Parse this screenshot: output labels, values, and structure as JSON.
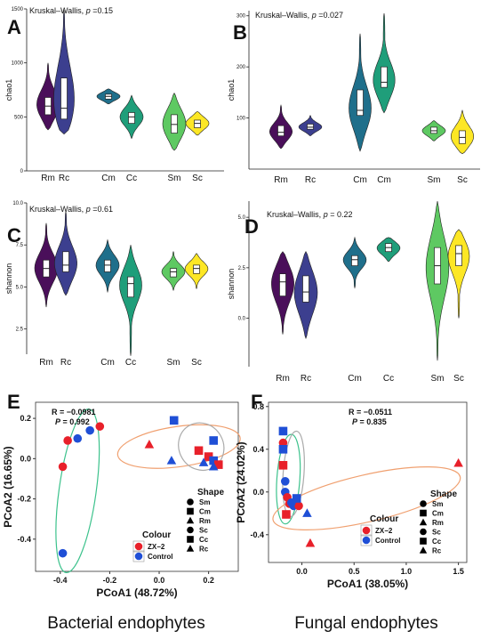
{
  "chart_data": [
    {
      "panel": "A",
      "type": "violin",
      "annotation_prefix": "Kruskal–Wallis, ",
      "p_label": "p",
      "p_value": "=0.15",
      "ylabel": "chao1",
      "ylim": [
        0,
        1500
      ],
      "yticks": [
        0,
        500,
        1000,
        1500
      ],
      "groups": [
        {
          "label": "Rm",
          "color": "#4a0f5a",
          "range": [
            380,
            1000
          ],
          "q1": 520,
          "median": 600,
          "q3": 680
        },
        {
          "label": "Rc",
          "color": "#3c3f8f",
          "range": [
            340,
            1490
          ],
          "q1": 480,
          "median": 580,
          "q3": 860
        },
        {
          "label": "Cm",
          "color": "#1f6f8b",
          "range": [
            620,
            760
          ],
          "q1": 665,
          "median": 690,
          "q3": 710
        },
        {
          "label": "Cc",
          "color": "#1f9e7a",
          "range": [
            300,
            700
          ],
          "q1": 440,
          "median": 500,
          "q3": 540
        },
        {
          "label": "Sm",
          "color": "#5ec962",
          "range": [
            190,
            720
          ],
          "q1": 350,
          "median": 430,
          "q3": 520
        },
        {
          "label": "Sc",
          "color": "#fde725",
          "range": [
            330,
            550
          ],
          "q1": 400,
          "median": 440,
          "q3": 470
        }
      ]
    },
    {
      "panel": "B",
      "type": "violin",
      "annotation_prefix": "Kruskal–Wallis, ",
      "p_label": "p",
      "p_value": "=0.027",
      "ylabel": "chao1",
      "ylim": [
        0,
        310
      ],
      "yticks": [
        100,
        200,
        300
      ],
      "groups": [
        {
          "label": "Rm",
          "color": "#4a0f5a",
          "range": [
            40,
            125
          ],
          "q1": 65,
          "median": 72,
          "q3": 85
        },
        {
          "label": "Rc",
          "color": "#3c3f8f",
          "range": [
            65,
            105
          ],
          "q1": 78,
          "median": 82,
          "q3": 88
        },
        {
          "label": "Cm",
          "color": "#1f6f8b",
          "range": [
            35,
            265
          ],
          "q1": 105,
          "median": 115,
          "q3": 155
        },
        {
          "label": "Cm",
          "color": "#1f9e7a",
          "range": [
            110,
            305
          ],
          "q1": 160,
          "median": 170,
          "q3": 200
        },
        {
          "label": "Sm",
          "color": "#5ec962",
          "range": [
            55,
            95
          ],
          "q1": 70,
          "median": 75,
          "q3": 82
        },
        {
          "label": "Sc",
          "color": "#fde725",
          "range": [
            30,
            115
          ],
          "q1": 50,
          "median": 62,
          "q3": 75
        }
      ]
    },
    {
      "panel": "C",
      "type": "violin",
      "annotation_prefix": "Kruskal–Wallis, ",
      "p_label": "p",
      "p_value": "=0.61",
      "ylabel": "shannon",
      "ylim": [
        1,
        10
      ],
      "yticks": [
        2.5,
        5.0,
        7.5,
        10.0
      ],
      "groups": [
        {
          "label": "Rm",
          "color": "#4a0f5a",
          "range": [
            3.8,
            8.8
          ],
          "q1": 5.6,
          "median": 6.1,
          "q3": 6.6
        },
        {
          "label": "Rc",
          "color": "#3c3f8f",
          "range": [
            4.5,
            9.5
          ],
          "q1": 5.9,
          "median": 6.3,
          "q3": 7.1
        },
        {
          "label": "Cm",
          "color": "#1f6f8b",
          "range": [
            4.7,
            7.8
          ],
          "q1": 5.9,
          "median": 6.3,
          "q3": 6.6
        },
        {
          "label": "Cc",
          "color": "#1f9e7a",
          "range": [
            0.9,
            7.5
          ],
          "q1": 4.4,
          "median": 5.2,
          "q3": 5.6
        },
        {
          "label": "Sm",
          "color": "#5ec962",
          "range": [
            4.8,
            7.1
          ],
          "q1": 5.6,
          "median": 5.9,
          "q3": 6.1
        },
        {
          "label": "Sc",
          "color": "#fde725",
          "range": [
            4.9,
            7.0
          ],
          "q1": 5.8,
          "median": 6.1,
          "q3": 6.3
        }
      ]
    },
    {
      "panel": "D",
      "type": "violin",
      "annotation_prefix": "Kruskal–Wallis, ",
      "p_label": "p",
      "p_value": "= 0.22",
      "ylabel": "shannon",
      "ylim": [
        -2.4,
        5.8
      ],
      "yticks": [
        0.0,
        2.5,
        5.0
      ],
      "groups": [
        {
          "label": "Rm",
          "color": "#4a0f5a",
          "range": [
            -0.8,
            3.3
          ],
          "q1": 1.1,
          "median": 1.8,
          "q3": 2.2
        },
        {
          "label": "Rc",
          "color": "#3c3f8f",
          "range": [
            -1.0,
            3.3
          ],
          "q1": 0.8,
          "median": 1.3,
          "q3": 2.1
        },
        {
          "label": "Cm",
          "color": "#1f6f8b",
          "range": [
            1.5,
            4.0
          ],
          "q1": 2.6,
          "median": 2.9,
          "q3": 3.1
        },
        {
          "label": "Cc",
          "color": "#1f9e7a",
          "range": [
            2.8,
            4.0
          ],
          "q1": 3.3,
          "median": 3.5,
          "q3": 3.7
        },
        {
          "label": "Sm",
          "color": "#5ec962",
          "range": [
            -2.1,
            5.8
          ],
          "q1": 1.7,
          "median": 2.6,
          "q3": 3.5
        },
        {
          "label": "Sc",
          "color": "#fde725",
          "range": [
            0.0,
            4.4
          ],
          "q1": 2.6,
          "median": 3.2,
          "q3": 3.6
        }
      ]
    },
    {
      "panel": "E",
      "type": "scatter",
      "stat_r": "R = −0.0981",
      "stat_p": "P = 0.992",
      "xlabel": "PCoA1 (48.72%)",
      "ylabel": "PCoA2 (16.65%)",
      "xlim": [
        -0.5,
        0.32
      ],
      "ylim": [
        -0.56,
        0.28
      ],
      "xticks": [
        -0.4,
        -0.2,
        0.0,
        0.2
      ],
      "yticks": [
        -0.4,
        -0.2,
        0.0,
        0.2
      ],
      "colour_title": "Colour",
      "shape_title": "Shape",
      "colour_legend": [
        {
          "label": "ZX−2",
          "color": "#e8202a"
        },
        {
          "label": "Control",
          "color": "#1f4fd6"
        }
      ],
      "shape_legend": [
        {
          "label": "Sm",
          "shape": "circle"
        },
        {
          "label": "Cm",
          "shape": "square"
        },
        {
          "label": "Rm",
          "shape": "triangle"
        },
        {
          "label": "Sc",
          "shape": "circle"
        },
        {
          "label": "Cc",
          "shape": "square"
        },
        {
          "label": "Rc",
          "shape": "triangle"
        }
      ],
      "points": [
        {
          "x": -0.37,
          "y": 0.09,
          "colour": "#e8202a",
          "shape": "circle"
        },
        {
          "x": -0.33,
          "y": 0.1,
          "colour": "#1f4fd6",
          "shape": "circle"
        },
        {
          "x": -0.28,
          "y": 0.14,
          "colour": "#1f4fd6",
          "shape": "circle"
        },
        {
          "x": -0.24,
          "y": 0.16,
          "colour": "#e8202a",
          "shape": "circle"
        },
        {
          "x": -0.39,
          "y": -0.04,
          "colour": "#e8202a",
          "shape": "circle"
        },
        {
          "x": -0.39,
          "y": -0.47,
          "colour": "#1f4fd6",
          "shape": "circle"
        },
        {
          "x": -0.04,
          "y": 0.07,
          "colour": "#e8202a",
          "shape": "triangle"
        },
        {
          "x": 0.06,
          "y": 0.19,
          "colour": "#1f4fd6",
          "shape": "square"
        },
        {
          "x": 0.22,
          "y": 0.09,
          "colour": "#1f4fd6",
          "shape": "square"
        },
        {
          "x": 0.16,
          "y": 0.04,
          "colour": "#e8202a",
          "shape": "square"
        },
        {
          "x": 0.2,
          "y": 0.01,
          "colour": "#e8202a",
          "shape": "square"
        },
        {
          "x": 0.22,
          "y": -0.01,
          "colour": "#1f4fd6",
          "shape": "square"
        },
        {
          "x": 0.24,
          "y": -0.03,
          "colour": "#e8202a",
          "shape": "square"
        },
        {
          "x": 0.18,
          "y": -0.02,
          "colour": "#1f4fd6",
          "shape": "triangle"
        },
        {
          "x": 0.05,
          "y": -0.01,
          "colour": "#1f4fd6",
          "shape": "triangle"
        },
        {
          "x": 0.22,
          "y": -0.04,
          "colour": "#1f4fd6",
          "shape": "triangle"
        }
      ],
      "ellipses": [
        {
          "color": "#3cc28c",
          "cx": -0.33,
          "cy": -0.16,
          "rx": 0.075,
          "ry": 0.41,
          "angle": 8
        },
        {
          "color": "#f0a070",
          "cx": 0.08,
          "cy": 0.06,
          "rx": 0.25,
          "ry": 0.1,
          "angle": -8
        },
        {
          "color": "#aaaaaa",
          "cx": 0.17,
          "cy": 0.06,
          "rx": 0.09,
          "ry": 0.12,
          "angle": -30
        }
      ]
    },
    {
      "panel": "F",
      "type": "scatter",
      "stat_r": "R = −0.0511",
      "stat_p": "P = 0.835",
      "xlabel": "PCoA1 (38.05%)",
      "ylabel": "PCoA2 (24.02%)",
      "xlim": [
        -0.32,
        1.58
      ],
      "ylim": [
        -0.66,
        0.84
      ],
      "xticks": [
        0.0,
        0.5,
        1.0,
        1.5
      ],
      "yticks": [
        -0.4,
        0.0,
        0.4,
        0.8
      ],
      "colour_title": "Colour",
      "shape_title": "Shape",
      "colour_legend": [
        {
          "label": "ZX−2",
          "color": "#e8202a"
        },
        {
          "label": "Control",
          "color": "#1f4fd6"
        }
      ],
      "shape_legend": [
        {
          "label": "Sm",
          "shape": "circle"
        },
        {
          "label": "Cm",
          "shape": "square"
        },
        {
          "label": "Rm",
          "shape": "triangle"
        },
        {
          "label": "Sc",
          "shape": "circle"
        },
        {
          "label": "Cc",
          "shape": "square"
        },
        {
          "label": "Rc",
          "shape": "triangle"
        }
      ],
      "points": [
        {
          "x": -0.18,
          "y": 0.57,
          "colour": "#1f4fd6",
          "shape": "square"
        },
        {
          "x": -0.18,
          "y": 0.46,
          "colour": "#e8202a",
          "shape": "circle"
        },
        {
          "x": -0.18,
          "y": 0.4,
          "colour": "#1f4fd6",
          "shape": "square"
        },
        {
          "x": -0.18,
          "y": 0.25,
          "colour": "#e8202a",
          "shape": "square"
        },
        {
          "x": -0.16,
          "y": 0.1,
          "colour": "#1f4fd6",
          "shape": "circle"
        },
        {
          "x": -0.16,
          "y": 0.0,
          "colour": "#1f4fd6",
          "shape": "circle"
        },
        {
          "x": -0.14,
          "y": -0.05,
          "colour": "#e8202a",
          "shape": "circle"
        },
        {
          "x": -0.12,
          "y": -0.11,
          "colour": "#e8202a",
          "shape": "circle"
        },
        {
          "x": -0.08,
          "y": -0.13,
          "colour": "#1f4fd6",
          "shape": "circle"
        },
        {
          "x": -0.03,
          "y": -0.13,
          "colour": "#e8202a",
          "shape": "circle"
        },
        {
          "x": -0.05,
          "y": -0.06,
          "colour": "#1f4fd6",
          "shape": "square"
        },
        {
          "x": -0.15,
          "y": -0.21,
          "colour": "#e8202a",
          "shape": "square"
        },
        {
          "x": 0.05,
          "y": -0.2,
          "colour": "#1f4fd6",
          "shape": "triangle"
        },
        {
          "x": 0.08,
          "y": -0.48,
          "colour": "#e8202a",
          "shape": "triangle"
        },
        {
          "x": 1.5,
          "y": 0.27,
          "colour": "#e8202a",
          "shape": "triangle"
        },
        {
          "x": -0.1,
          "y": -0.1,
          "colour": "#1f4fd6",
          "shape": "circle"
        }
      ],
      "ellipses": [
        {
          "color": "#3cc28c",
          "cx": -0.13,
          "cy": 0.12,
          "rx": 0.11,
          "ry": 0.42,
          "angle": 4
        },
        {
          "color": "#aaaaaa",
          "cx": -0.08,
          "cy": 0.17,
          "rx": 0.1,
          "ry": 0.4,
          "angle": 4
        },
        {
          "color": "#f0a070",
          "cx": 0.62,
          "cy": -0.06,
          "rx": 0.92,
          "ry": 0.22,
          "angle": -13
        }
      ]
    }
  ],
  "panel_letters": {
    "A": "A",
    "B": "B",
    "C": "C",
    "D": "D",
    "E": "E",
    "F": "F"
  },
  "captions": {
    "left": "Bacterial endophytes",
    "right": "Fungal endophytes"
  }
}
